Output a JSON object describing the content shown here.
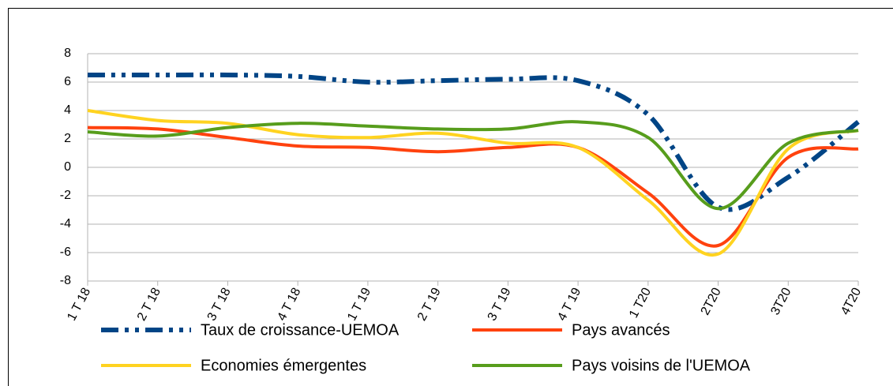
{
  "chart_data": {
    "type": "line",
    "categories": [
      "1 T 18",
      "2 T 18",
      "3 T 18",
      "4 T 18",
      "1 T 19",
      "2 T 19",
      "3 T 19",
      "4 T 19",
      "1 T20",
      "2T20",
      "3T20",
      "4T20"
    ],
    "series": [
      {
        "name": "Taux de croissance-UEMOA",
        "color": "#004586",
        "line_style": "dash-dot-dot",
        "values": [
          6.5,
          6.5,
          6.5,
          6.4,
          6.0,
          6.1,
          6.2,
          6.1,
          3.7,
          -2.8,
          -0.7,
          3.2
        ]
      },
      {
        "name": "Pays avancés",
        "color": "#ff420e",
        "line_style": "solid",
        "values": [
          2.8,
          2.7,
          2.1,
          1.5,
          1.4,
          1.1,
          1.4,
          1.4,
          -1.8,
          -5.5,
          0.7,
          1.3
        ]
      },
      {
        "name": "Economies émergentes",
        "color": "#ffd320",
        "line_style": "solid",
        "values": [
          4.0,
          3.3,
          3.1,
          2.3,
          2.1,
          2.4,
          1.7,
          1.4,
          -2.3,
          -6.1,
          1.3,
          2.6
        ]
      },
      {
        "name": "Pays voisins de l'UEMOA",
        "color": "#579d1c",
        "line_style": "solid",
        "values": [
          2.5,
          2.2,
          2.8,
          3.1,
          2.9,
          2.7,
          2.7,
          3.2,
          2.1,
          -2.9,
          1.7,
          2.6
        ]
      }
    ],
    "ylim": [
      -8,
      8
    ],
    "yticks": [
      -8,
      -6,
      -4,
      -2,
      0,
      2,
      4,
      6,
      8
    ],
    "grid": true,
    "smooth": true,
    "legend": "bottom"
  }
}
